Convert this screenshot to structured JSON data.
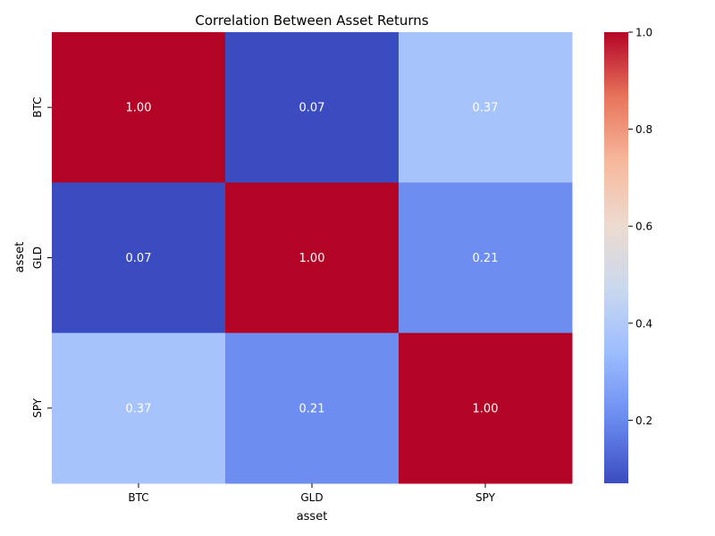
{
  "chart_data": {
    "type": "heatmap",
    "title": "Correlation Between Asset Returns",
    "xlabel": "asset",
    "ylabel": "asset",
    "x_categories": [
      "BTC",
      "GLD",
      "SPY"
    ],
    "y_categories": [
      "BTC",
      "GLD",
      "SPY"
    ],
    "values": [
      [
        1.0,
        0.07,
        0.37
      ],
      [
        0.07,
        1.0,
        0.21
      ],
      [
        0.37,
        0.21,
        1.0
      ]
    ],
    "cell_labels": [
      [
        "1.00",
        "0.07",
        "0.37"
      ],
      [
        "0.07",
        "1.00",
        "0.21"
      ],
      [
        "0.37",
        "0.21",
        "1.00"
      ]
    ],
    "colorbar": {
      "range": [
        0.07,
        1.0
      ],
      "ticks": [
        0.2,
        0.4,
        0.6,
        0.8,
        1.0
      ],
      "tick_labels": [
        "0.2",
        "0.4",
        "0.6",
        "0.8",
        "1.0"
      ],
      "colormap": "coolwarm",
      "color_stops": [
        "#3b4cc0",
        "#6a8bef",
        "#9bbcff",
        "#c9d8ef",
        "#eddbd0",
        "#f7b89c",
        "#e7745b",
        "#b40426"
      ]
    },
    "cell_text_color": "#ffffff",
    "grid": false,
    "legend": "colorbar-right"
  }
}
